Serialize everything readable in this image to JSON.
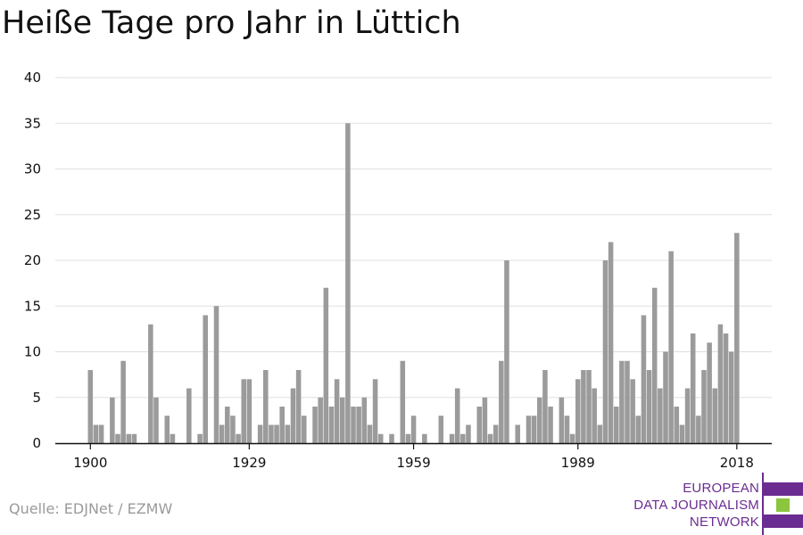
{
  "title": "Heiße Tage pro Jahr in Lüttich",
  "source": "Quelle: EDJNet / EZMW",
  "logo": {
    "lines": [
      "EUROPEAN",
      "DATA JOURNALISM",
      "NETWORK"
    ],
    "colors": {
      "text": "#6b2c91",
      "bar_top": "#6b2c91",
      "bar_mid": "#8cc63f",
      "bar_bottom": "#6b2c91"
    }
  },
  "colors": {
    "bar": "#9b9b9b",
    "grid": "#e0e0e0",
    "axis": "#111111",
    "text": "#111111"
  },
  "chart_data": {
    "type": "bar",
    "title": "Heiße Tage pro Jahr in Lüttich",
    "xlabel": "",
    "ylabel": "",
    "x_tick_labels": [
      "1900",
      "1929",
      "1959",
      "1989",
      "2018"
    ],
    "y_tick_labels": [
      "0",
      "5",
      "10",
      "15",
      "20",
      "25",
      "30",
      "35",
      "40"
    ],
    "ylim": [
      0,
      40
    ],
    "grid": true,
    "categories": [
      1900,
      1901,
      1902,
      1903,
      1904,
      1905,
      1906,
      1907,
      1908,
      1909,
      1910,
      1911,
      1912,
      1913,
      1914,
      1915,
      1916,
      1917,
      1918,
      1919,
      1920,
      1921,
      1922,
      1923,
      1924,
      1925,
      1926,
      1927,
      1928,
      1929,
      1930,
      1931,
      1932,
      1933,
      1934,
      1935,
      1936,
      1937,
      1938,
      1939,
      1940,
      1941,
      1942,
      1943,
      1944,
      1945,
      1946,
      1947,
      1948,
      1949,
      1950,
      1951,
      1952,
      1953,
      1954,
      1955,
      1956,
      1957,
      1958,
      1959,
      1960,
      1961,
      1962,
      1963,
      1964,
      1965,
      1966,
      1967,
      1968,
      1969,
      1970,
      1971,
      1972,
      1973,
      1974,
      1975,
      1976,
      1977,
      1978,
      1979,
      1980,
      1981,
      1982,
      1983,
      1984,
      1985,
      1986,
      1987,
      1988,
      1989,
      1990,
      1991,
      1992,
      1993,
      1994,
      1995,
      1996,
      1997,
      1998,
      1999,
      2000,
      2001,
      2002,
      2003,
      2004,
      2005,
      2006,
      2007,
      2008,
      2009,
      2010,
      2011,
      2012,
      2013,
      2014,
      2015,
      2016,
      2017,
      2018
    ],
    "values": [
      8,
      2,
      2,
      0,
      5,
      1,
      9,
      1,
      1,
      0,
      0,
      13,
      5,
      0,
      3,
      1,
      0,
      0,
      6,
      0,
      1,
      14,
      0,
      15,
      2,
      4,
      3,
      1,
      7,
      7,
      0,
      2,
      8,
      2,
      2,
      4,
      2,
      6,
      8,
      3,
      0,
      4,
      5,
      17,
      4,
      7,
      5,
      35,
      4,
      4,
      5,
      2,
      7,
      1,
      0,
      1,
      0,
      9,
      1,
      3,
      0,
      1,
      0,
      0,
      3,
      0,
      1,
      6,
      1,
      2,
      0,
      4,
      5,
      1,
      2,
      9,
      20,
      0,
      2,
      0,
      3,
      3,
      5,
      8,
      4,
      0,
      5,
      3,
      1,
      7,
      8,
      8,
      6,
      2,
      20,
      22,
      4,
      9,
      9,
      7,
      3,
      14,
      8,
      17,
      6,
      10,
      21,
      4,
      2,
      6,
      12,
      3,
      8,
      11,
      6,
      13,
      12,
      10,
      23
    ]
  }
}
